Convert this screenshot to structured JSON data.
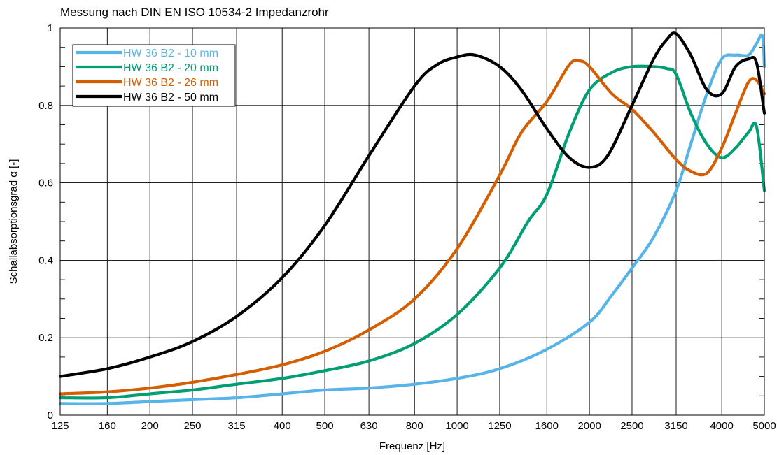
{
  "chart_data": {
    "type": "line",
    "title": "Messung nach DIN EN ISO 10534-2 Impedanzrohr",
    "xlabel": "Frequenz [Hz]",
    "ylabel": "Schallabsorptionsgrad α [-]",
    "x_scale": "log",
    "xlim": [
      125,
      5000
    ],
    "ylim": [
      0,
      1
    ],
    "xticks": [
      125,
      160,
      200,
      250,
      315,
      400,
      500,
      630,
      800,
      1000,
      1250,
      1600,
      2000,
      2500,
      3150,
      4000,
      5000
    ],
    "xtick_labels": [
      "125",
      "160",
      "200",
      "250",
      "315",
      "400",
      "500",
      "630",
      "800",
      "1000",
      "1250",
      "1600",
      "2000",
      "2500",
      "3150",
      "4000",
      "5000"
    ],
    "yticks": [
      0,
      0.2,
      0.4,
      0.6,
      0.8,
      1
    ],
    "ytick_labels": [
      "0",
      "0.2",
      "0.4",
      "0.6",
      "0.8",
      "1"
    ],
    "grid": true,
    "legend_position": "top-left",
    "series": [
      {
        "name": "HW 36 B2 - 10 mm",
        "color": "#56b4e9",
        "x": [
          125,
          160,
          200,
          250,
          315,
          400,
          500,
          630,
          800,
          1000,
          1250,
          1600,
          2000,
          2250,
          2500,
          2800,
          3150,
          3400,
          3700,
          4000,
          4300,
          4600,
          4800,
          4950,
          5000
        ],
        "y": [
          0.03,
          0.03,
          0.035,
          0.04,
          0.045,
          0.055,
          0.065,
          0.07,
          0.08,
          0.095,
          0.12,
          0.17,
          0.24,
          0.31,
          0.38,
          0.46,
          0.58,
          0.7,
          0.83,
          0.92,
          0.93,
          0.93,
          0.96,
          0.98,
          0.9
        ]
      },
      {
        "name": "HW 36 B2 - 20 mm",
        "color": "#009e73",
        "x": [
          125,
          160,
          200,
          250,
          315,
          400,
          500,
          630,
          800,
          1000,
          1250,
          1450,
          1600,
          1800,
          2000,
          2250,
          2500,
          2800,
          3000,
          3150,
          3400,
          3700,
          4000,
          4300,
          4600,
          4800,
          5000
        ],
        "y": [
          0.045,
          0.045,
          0.055,
          0.065,
          0.08,
          0.095,
          0.115,
          0.14,
          0.185,
          0.26,
          0.38,
          0.5,
          0.57,
          0.73,
          0.84,
          0.885,
          0.9,
          0.9,
          0.895,
          0.88,
          0.78,
          0.7,
          0.665,
          0.69,
          0.73,
          0.745,
          0.58
        ]
      },
      {
        "name": "HW 36 B2 - 26 mm",
        "color": "#d55e00",
        "x": [
          125,
          160,
          200,
          250,
          315,
          400,
          500,
          630,
          800,
          1000,
          1250,
          1400,
          1600,
          1800,
          1900,
          2000,
          2250,
          2500,
          2800,
          3150,
          3400,
          3700,
          4000,
          4300,
          4600,
          4800,
          5000
        ],
        "y": [
          0.055,
          0.06,
          0.07,
          0.085,
          0.105,
          0.13,
          0.165,
          0.22,
          0.3,
          0.43,
          0.62,
          0.73,
          0.81,
          0.905,
          0.915,
          0.9,
          0.83,
          0.79,
          0.73,
          0.66,
          0.63,
          0.625,
          0.69,
          0.78,
          0.86,
          0.865,
          0.83
        ]
      },
      {
        "name": "HW 36 B2 - 50 mm",
        "color": "#000000",
        "x": [
          125,
          160,
          200,
          250,
          315,
          400,
          500,
          630,
          800,
          900,
          1000,
          1100,
          1250,
          1400,
          1600,
          1800,
          2000,
          2200,
          2500,
          2800,
          3000,
          3150,
          3400,
          3700,
          4000,
          4300,
          4600,
          4800,
          5000
        ],
        "y": [
          0.1,
          0.12,
          0.15,
          0.19,
          0.255,
          0.355,
          0.49,
          0.67,
          0.85,
          0.905,
          0.925,
          0.93,
          0.9,
          0.84,
          0.74,
          0.665,
          0.64,
          0.67,
          0.8,
          0.92,
          0.97,
          0.985,
          0.93,
          0.84,
          0.83,
          0.9,
          0.92,
          0.91,
          0.78
        ]
      }
    ]
  }
}
